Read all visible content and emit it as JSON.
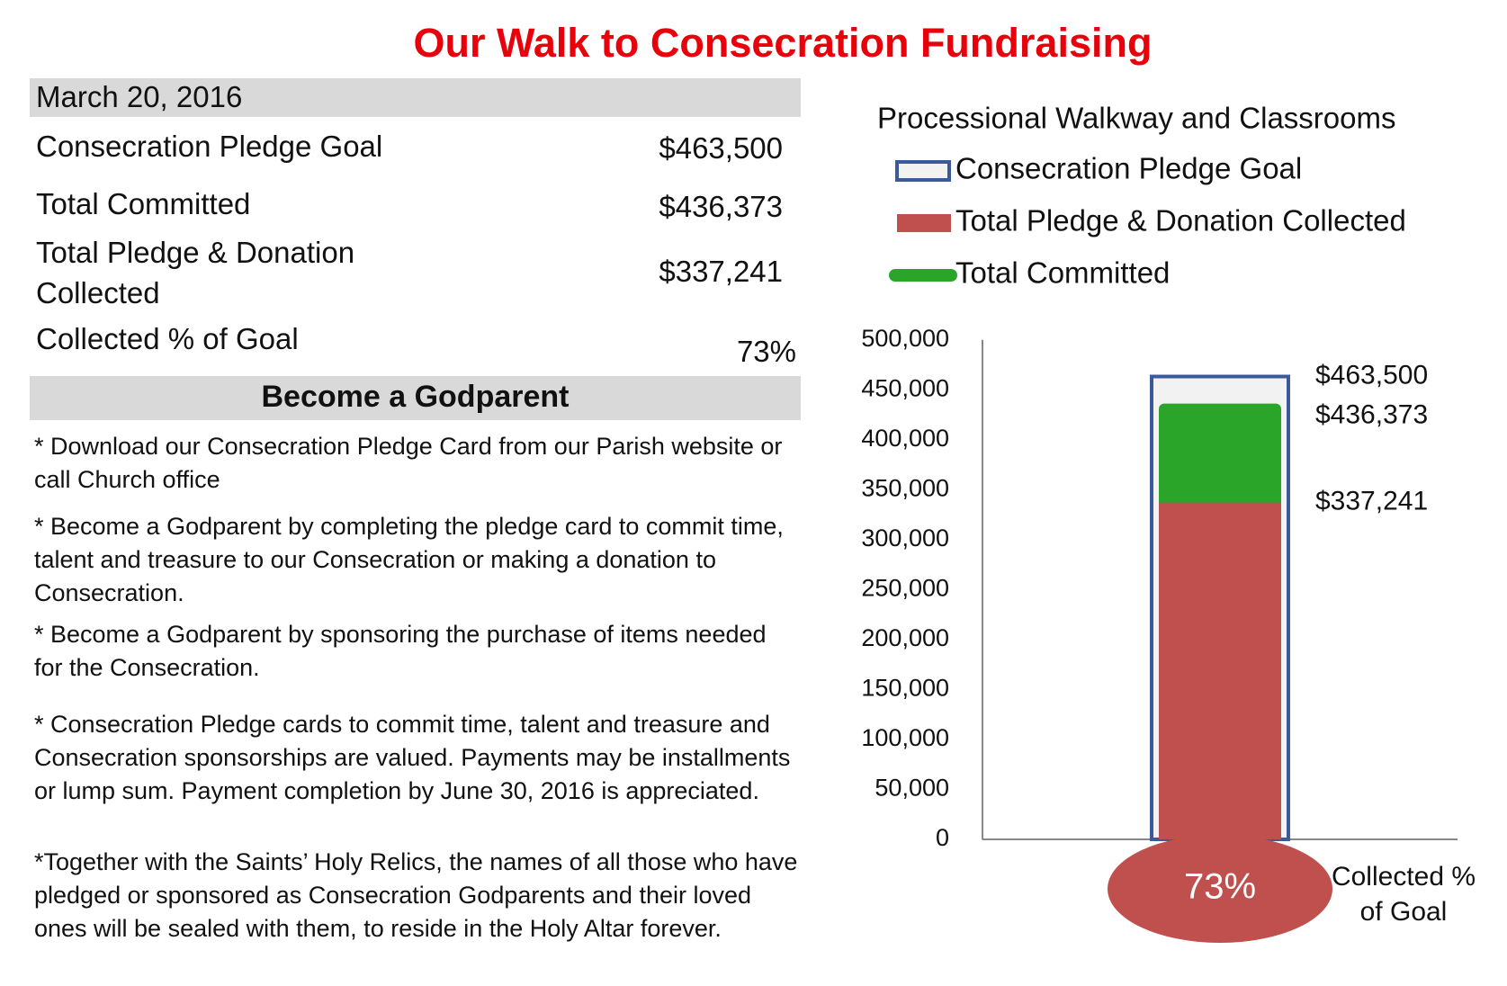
{
  "title": "Our Walk to Consecration Fundraising",
  "summary": {
    "date": "March 20, 2016",
    "rows": [
      [
        "Consecration Pledge Goal",
        "$463,500"
      ],
      [
        "Total Committed",
        "$436,373"
      ],
      [
        "Total Pledge & Donation Collected",
        "$337,241"
      ],
      [
        "Collected % of Goal",
        "73%"
      ]
    ]
  },
  "godparent": {
    "heading": "Become a Godparent",
    "paragraphs": [
      "* Download our Consecration Pledge Card from our Parish website or call Church office",
      "* Become a Godparent by completing the pledge card to commit time, talent and treasure to our Consecration or making a donation to Consecration.",
      "* Become a Godparent by sponsoring the purchase of items needed for the Consecration.",
      "* Consecration Pledge cards to commit time, talent and treasure and Consecration sponsorships are valued. Payments may be installments or lump sum. Payment completion by June 30, 2016 is appreciated.",
      "*Together with the Saints’ Holy Relics, the names of all those who have pledged or sponsored as Consecration Godparents and their loved ones will be sealed with them, to reside in the Holy Altar forever."
    ]
  },
  "chart_data": {
    "type": "bar",
    "title": "Processional Walkway and Classrooms",
    "series": [
      {
        "name": "Consecration Pledge Goal",
        "color": "#f2f2f2",
        "border_color": "#3b5a9a",
        "values": [
          463500
        ],
        "value_labels": [
          "$463,500"
        ]
      },
      {
        "name": "Total Pledge & Donation Collected",
        "color": "#c0504d",
        "values": [
          337241
        ],
        "value_labels": [
          "$337,241"
        ]
      },
      {
        "name": "Total Committed",
        "color": "#2aa52a",
        "values": [
          436373
        ],
        "value_labels": [
          "$436,373"
        ]
      }
    ],
    "ylim": [
      0,
      500000
    ],
    "yticks": [
      0,
      {
        "value": 50000,
        "label": "50,000"
      },
      {
        "value": 100000,
        "label": "100,000"
      },
      {
        "value": 150000,
        "label": "150,000"
      },
      {
        "value": 200000,
        "label": "200,000"
      },
      {
        "value": 250000,
        "label": "250,000"
      },
      {
        "value": 300000,
        "label": "300,000"
      },
      {
        "value": 350000,
        "label": "350,000"
      },
      {
        "value": 400000,
        "label": "400,000"
      },
      {
        "value": 450000,
        "label": "450,000"
      },
      {
        "value": 500000,
        "label": "500,000"
      }
    ],
    "annotations": [
      "73%",
      "Collected % of Goal"
    ]
  }
}
